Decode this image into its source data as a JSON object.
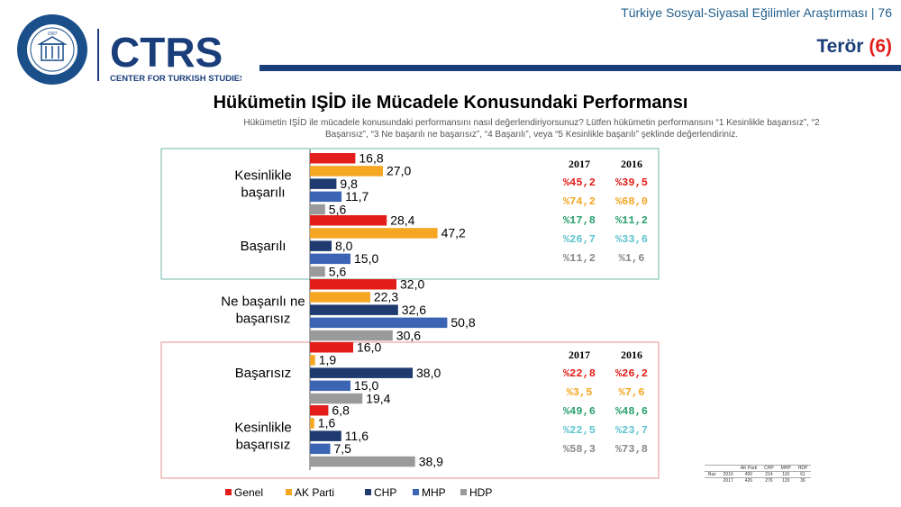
{
  "header": {
    "survey": "Türkiye Sosyal-Siyasal Eğilimler Araştırması | 76",
    "topic": "Terör",
    "topic_num": "(6)"
  },
  "logo": {
    "seal_text": "KADİR HAS ÜNİVERSİTESİ",
    "seal_year": "1997",
    "brand": "CTRS",
    "brand_sub": "CENTER FOR TURKISH STUDIES"
  },
  "question": "Hükümetin IŞİD ile mücadele konusundaki performansını nasıl değerlendiriyorsunuz? Lütfen hükümetin performansını  “1 Kesinlikle başarısız”, “2 Başarısız”, “3 Ne başarılı ne başarısız”, “4 Başarılı”, veya “5 Kesinlikle başarılı”  şeklinde değerlendiriniz.",
  "chart_data": {
    "type": "bar",
    "orientation": "horizontal",
    "title": "Hükümetin IŞİD ile Mücadele Konusundaki Performansı",
    "categories": [
      [
        "Kesinlikle",
        "başarılı"
      ],
      [
        "Başarılı"
      ],
      [
        "Ne başarılı ne",
        "başarısız"
      ],
      [
        "Başarısız"
      ],
      [
        "Kesinlikle",
        "başarısız"
      ]
    ],
    "series": [
      {
        "name": "Genel",
        "color": "#e31d1a",
        "values": [
          16.8,
          28.4,
          32.0,
          16.0,
          6.8
        ]
      },
      {
        "name": "AK Parti",
        "color": "#f5a623",
        "values": [
          27.0,
          47.2,
          22.3,
          1.9,
          1.6
        ]
      },
      {
        "name": "CHP",
        "color": "#1e3a6e",
        "values": [
          9.8,
          8.0,
          32.6,
          38.0,
          11.6
        ]
      },
      {
        "name": "MHP",
        "color": "#3c64b4",
        "values": [
          11.7,
          15.0,
          50.8,
          15.0,
          7.5
        ]
      },
      {
        "name": "HDP",
        "color": "#9a9a9a",
        "values": [
          5.6,
          5.6,
          30.6,
          19.4,
          38.9
        ]
      }
    ],
    "xlim": [
      0,
      60
    ],
    "legend_position": "bottom"
  },
  "summary_tables": [
    {
      "group": "başarılı",
      "years": [
        "2017",
        "2016"
      ],
      "rows": [
        {
          "party": "Genel",
          "color": "#e31d1a",
          "values": [
            "%45,2",
            "%39,5"
          ]
        },
        {
          "party": "AK Parti",
          "color": "#f5a623",
          "values": [
            "%74,2",
            "%68,0"
          ]
        },
        {
          "party": "CHP",
          "color": "#2aa070",
          "values": [
            "%17,8",
            "%11,2"
          ]
        },
        {
          "party": "MHP",
          "color": "#5fc4cf",
          "values": [
            "%26,7",
            "%33,6"
          ]
        },
        {
          "party": "HDP",
          "color": "#8a8a8a",
          "values": [
            "%11,2",
            "%1,6"
          ]
        }
      ]
    },
    {
      "group": "başarısız",
      "years": [
        "2017",
        "2016"
      ],
      "rows": [
        {
          "party": "Genel",
          "color": "#e31d1a",
          "values": [
            "%22,8",
            "%26,2"
          ]
        },
        {
          "party": "AK Parti",
          "color": "#f5a623",
          "values": [
            "%3,5",
            "%7,6"
          ]
        },
        {
          "party": "CHP",
          "color": "#2aa070",
          "values": [
            "%49,6",
            "%48,6"
          ]
        },
        {
          "party": "MHP",
          "color": "#5fc4cf",
          "values": [
            "%22,5",
            "%23,7"
          ]
        },
        {
          "party": "HDP",
          "color": "#8a8a8a",
          "values": [
            "%58,3",
            "%73,8"
          ]
        }
      ]
    }
  ],
  "sample_table": {
    "label": "Baz",
    "headers": [
      "AK Parti",
      "CHP",
      "MHP",
      "HDP"
    ],
    "rows": [
      {
        "year": "2016",
        "values": [
          "450",
          "214",
          "110",
          "61"
        ]
      },
      {
        "year": "2017",
        "values": [
          "426",
          "276",
          "120",
          "36"
        ]
      }
    ]
  }
}
